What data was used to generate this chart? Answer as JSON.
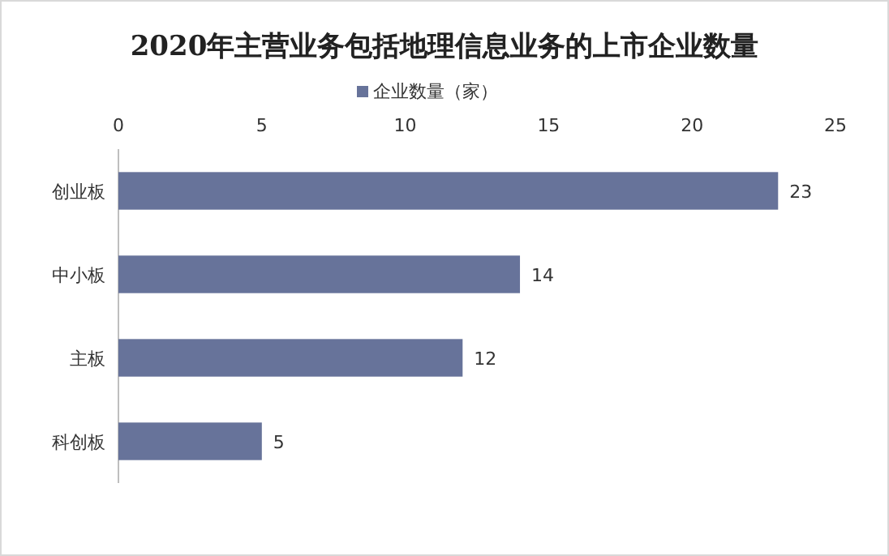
{
  "chart_data": {
    "type": "bar",
    "orientation": "horizontal",
    "title": "2020年主营业务包括地理信息业务的上市企业数量",
    "categories": [
      "创业板",
      "中小板",
      "主板",
      "科创板"
    ],
    "series": [
      {
        "name": "企业数量（家）",
        "color": "#67739a",
        "values": [
          23,
          14,
          12,
          5
        ]
      }
    ],
    "xlim": [
      0,
      25
    ],
    "xticks": [
      0,
      5,
      10,
      15,
      20,
      25
    ],
    "data_labels": true,
    "legend": "top"
  }
}
